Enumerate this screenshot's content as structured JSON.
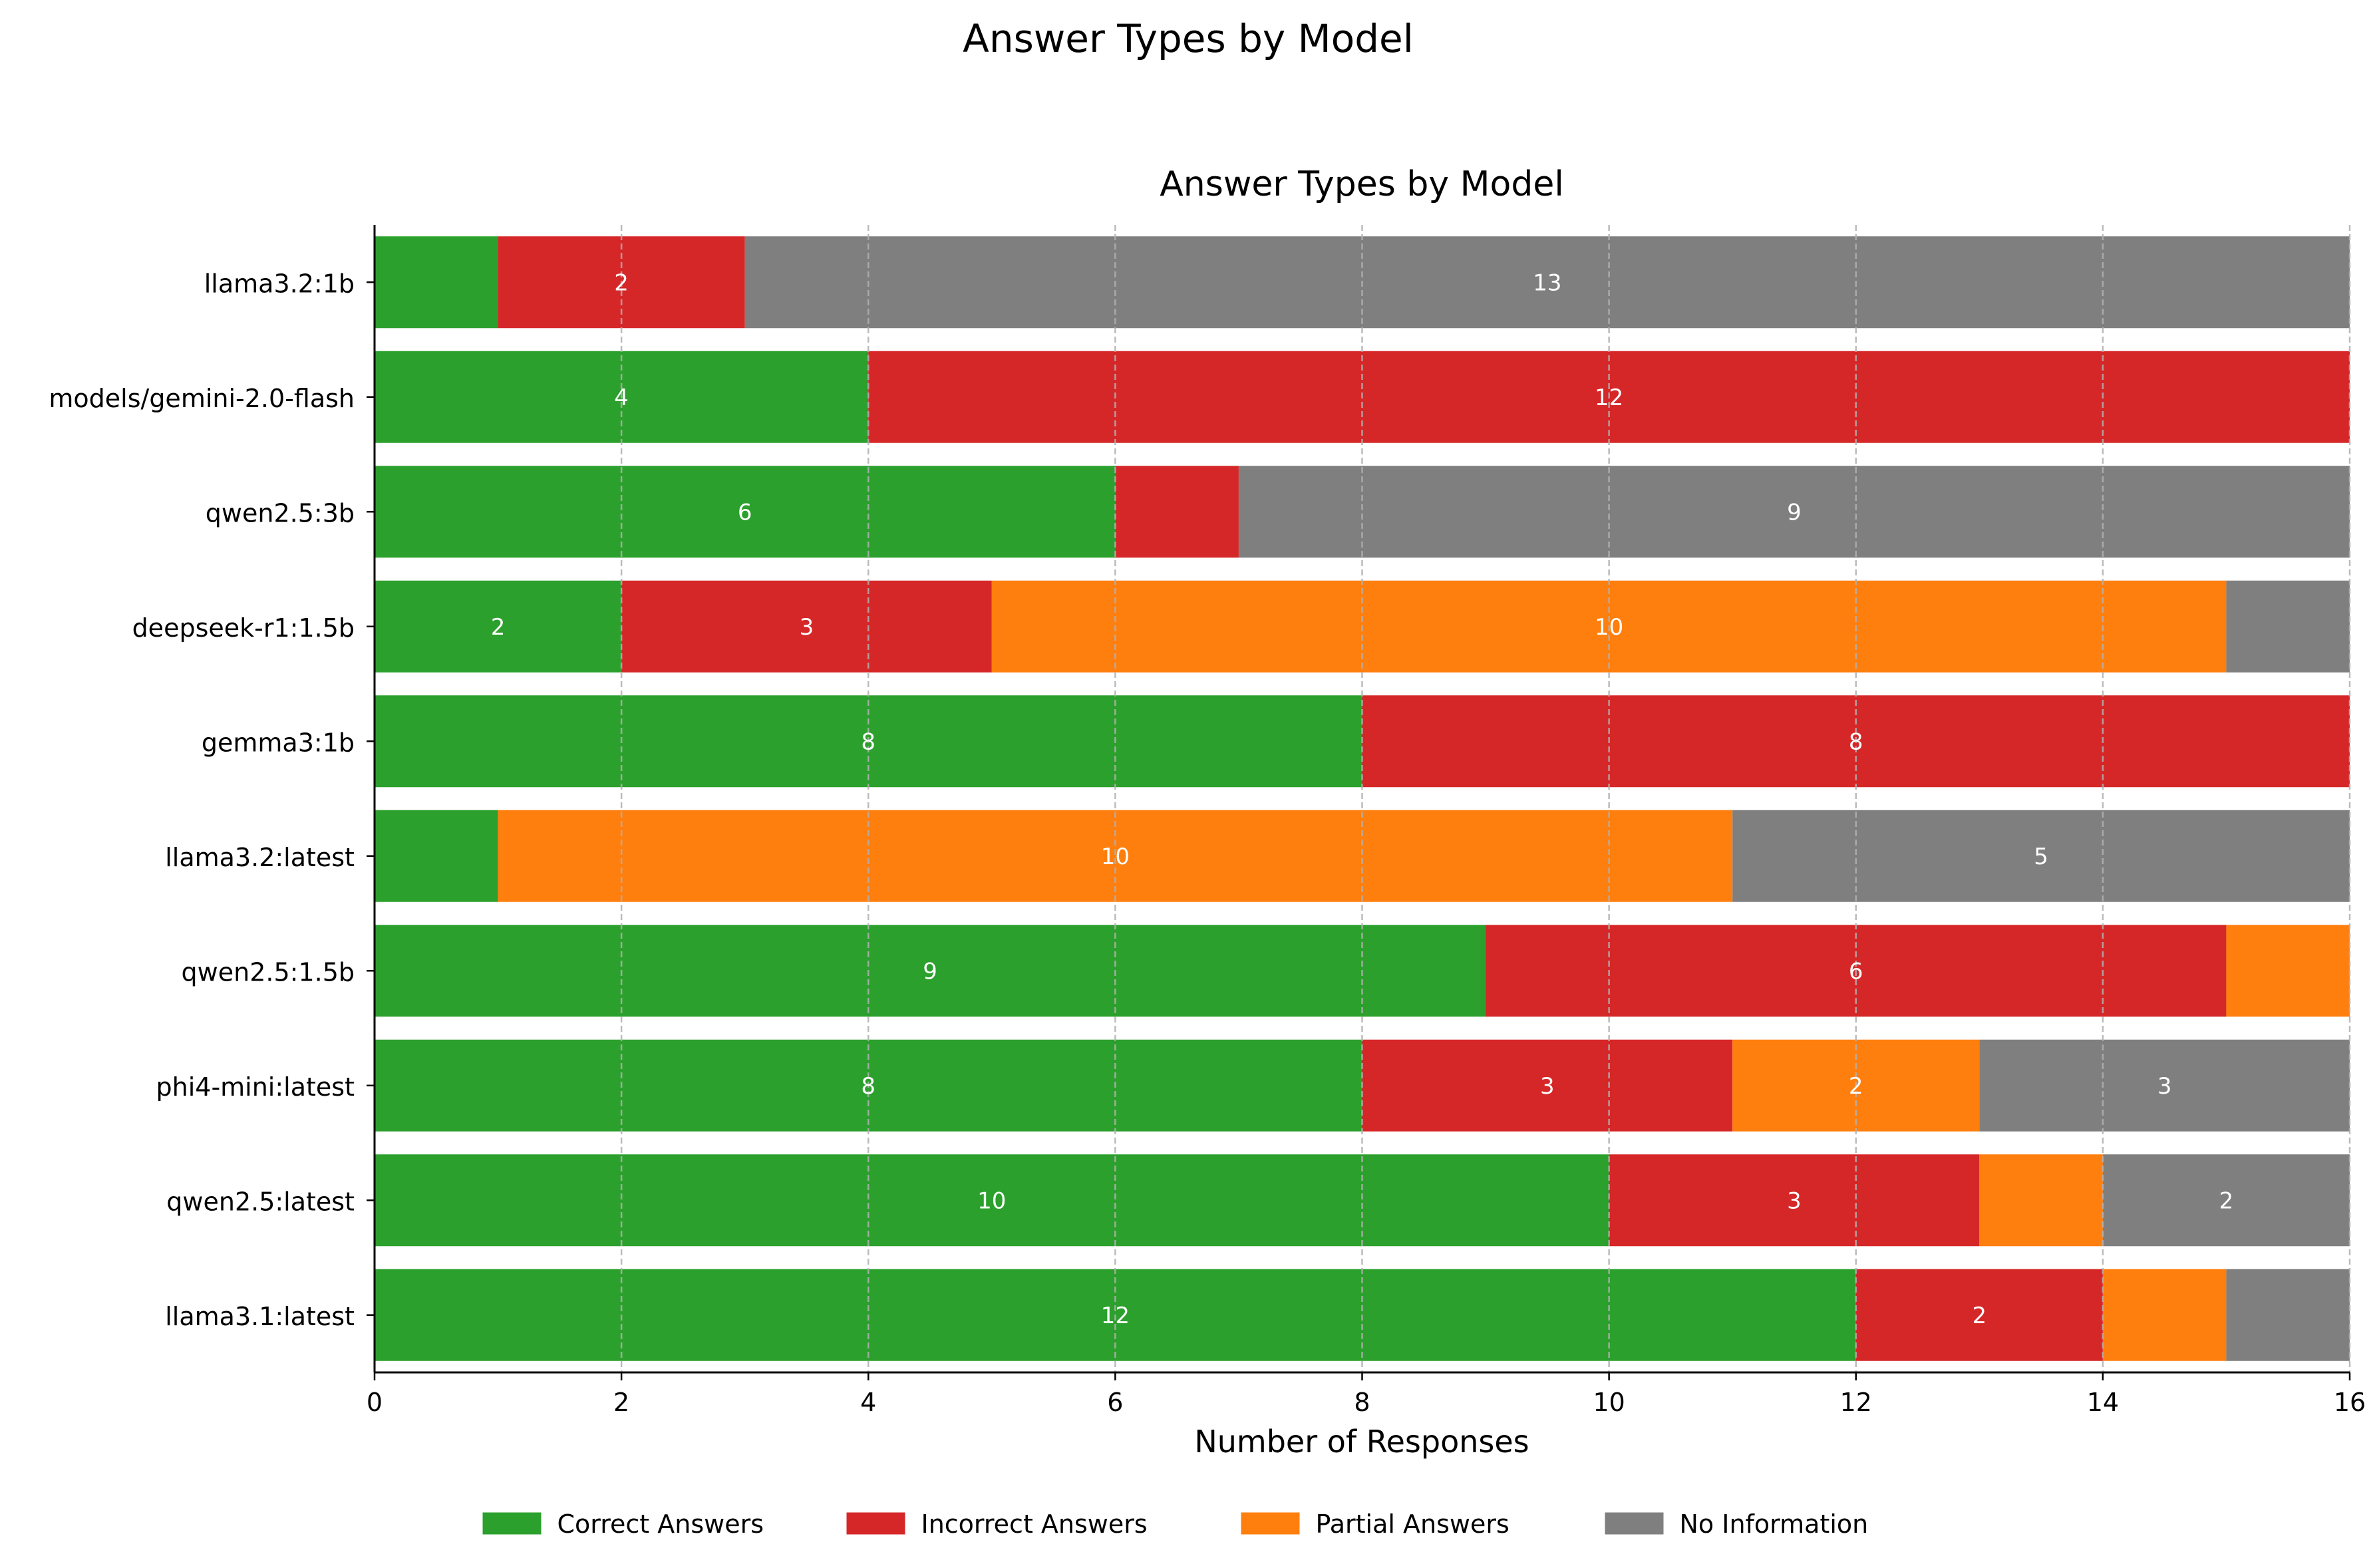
{
  "figure_title": "Answer Types by Model",
  "chart_data": {
    "type": "bar",
    "orientation": "horizontal",
    "stacked": true,
    "title": "Answer Types by Model",
    "xlabel": "Number of Responses",
    "ylabel": "",
    "xlim": [
      0,
      16
    ],
    "xticks": [
      0,
      2,
      4,
      6,
      8,
      10,
      12,
      14,
      16
    ],
    "grid": "x, dashed",
    "legend_position": "bottom-center",
    "categories": [
      "llama3.2:1b",
      "models/gemini-2.0-flash",
      "qwen2.5:3b",
      "deepseek-r1:1.5b",
      "gemma3:1b",
      "llama3.2:latest",
      "qwen2.5:1.5b",
      "phi4-mini:latest",
      "qwen2.5:latest",
      "llama3.1:latest"
    ],
    "series": [
      {
        "name": "Correct Answers",
        "color": "#2ca02c",
        "values": [
          1,
          4,
          6,
          2,
          8,
          1,
          9,
          8,
          10,
          12
        ]
      },
      {
        "name": "Incorrect Answers",
        "color": "#d62728",
        "values": [
          2,
          12,
          1,
          3,
          8,
          0,
          6,
          3,
          3,
          2
        ]
      },
      {
        "name": "Partial Answers",
        "color": "#ff7f0e",
        "values": [
          0,
          0,
          0,
          10,
          0,
          10,
          1,
          2,
          1,
          1
        ]
      },
      {
        "name": "No Information",
        "color": "#7f7f7f",
        "values": [
          13,
          0,
          9,
          1,
          0,
          5,
          0,
          3,
          2,
          1
        ]
      }
    ]
  }
}
